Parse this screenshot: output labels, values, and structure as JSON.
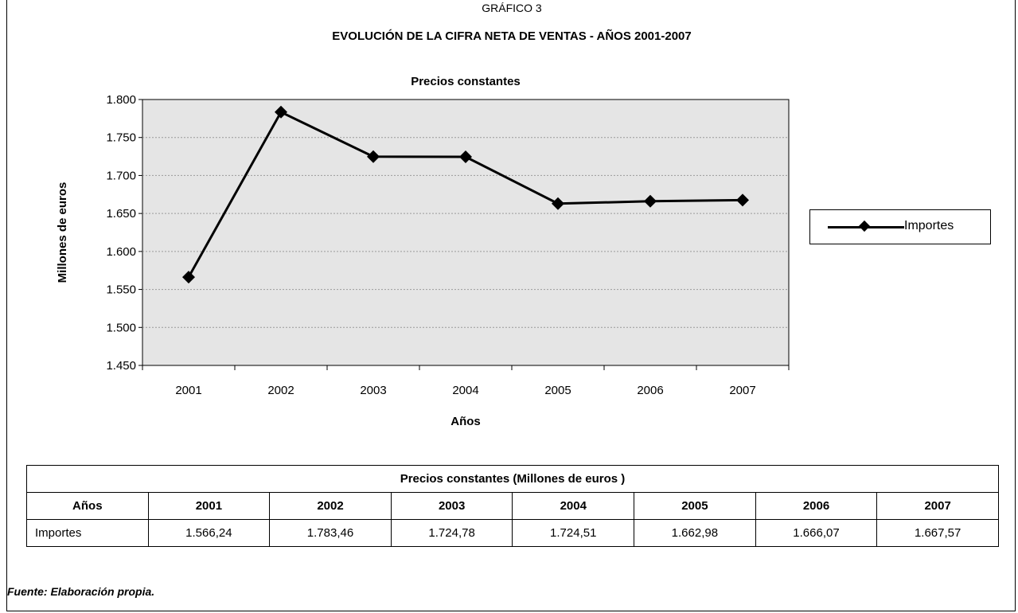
{
  "header": {
    "kicker": "GRÁFICO 3",
    "title": "EVOLUCIÓN DE LA CIFRA NETA DE VENTAS - AÑOS 2001-2007"
  },
  "chart_data": {
    "type": "line",
    "title": "Precios constantes",
    "xlabel": "Años",
    "ylabel": "Millones de euros",
    "categories": [
      "2001",
      "2002",
      "2003",
      "2004",
      "2005",
      "2006",
      "2007"
    ],
    "ylim": [
      1450,
      1800
    ],
    "yticks": [
      1450,
      1500,
      1550,
      1600,
      1650,
      1700,
      1750,
      1800
    ],
    "ytick_labels": [
      "1.450",
      "1.500",
      "1.550",
      "1.600",
      "1.650",
      "1.700",
      "1.750",
      "1.800"
    ],
    "grid": true,
    "legend_position": "right",
    "series": [
      {
        "name": "Importes",
        "values": [
          1566.24,
          1783.46,
          1724.78,
          1724.51,
          1662.98,
          1666.07,
          1667.57
        ],
        "color": "#000000"
      }
    ],
    "plot_background": "#e5e5e5"
  },
  "table": {
    "caption": "Precios constantes (Millones de euros )",
    "header_label": "Años",
    "years": [
      "2001",
      "2002",
      "2003",
      "2004",
      "2005",
      "2006",
      "2007"
    ],
    "row_label": "Importes",
    "values": [
      "1.566,24",
      "1.783,46",
      "1.724,78",
      "1.724,51",
      "1.662,98",
      "1.666,07",
      "1.667,57"
    ]
  },
  "footer": {
    "source": "Fuente: Elaboración propia."
  }
}
